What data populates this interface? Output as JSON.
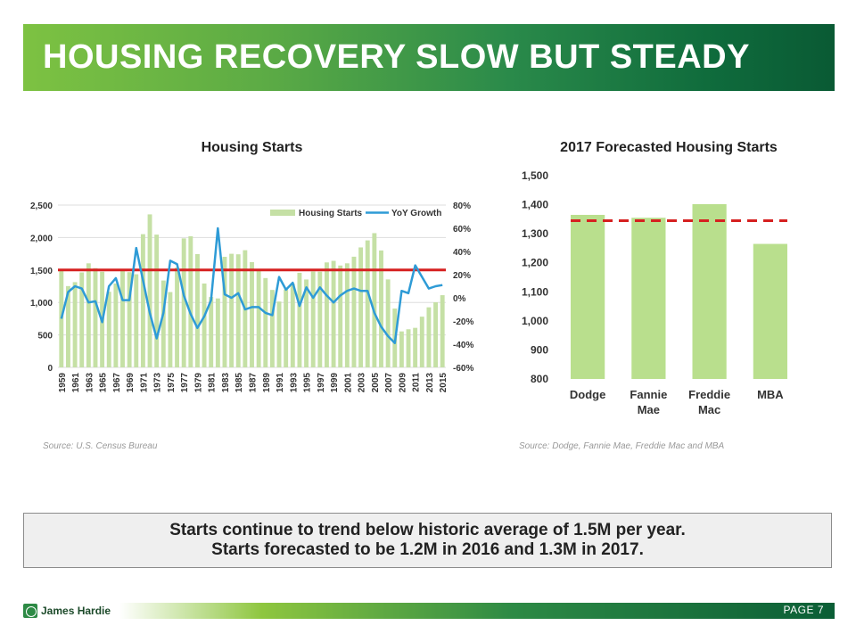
{
  "header": {
    "title": "HOUSING RECOVERY SLOW BUT STEADY"
  },
  "chart_data": [
    {
      "type": "bar",
      "title": "Housing Starts",
      "legend": [
        "Housing Starts",
        "YoY Growth"
      ],
      "legend_position": "top-right",
      "x": [
        1959,
        1960,
        1961,
        1962,
        1963,
        1964,
        1965,
        1966,
        1967,
        1968,
        1969,
        1970,
        1971,
        1972,
        1973,
        1974,
        1975,
        1976,
        1977,
        1978,
        1979,
        1980,
        1981,
        1982,
        1983,
        1984,
        1985,
        1986,
        1987,
        1988,
        1989,
        1990,
        1991,
        1992,
        1993,
        1994,
        1995,
        1996,
        1997,
        1998,
        1999,
        2000,
        2001,
        2002,
        2003,
        2004,
        2005,
        2006,
        2007,
        2008,
        2009,
        2010,
        2011,
        2012,
        2013,
        2014,
        2015
      ],
      "x_tick_labels": [
        "1959",
        "1961",
        "1963",
        "1965",
        "1967",
        "1969",
        "1971",
        "1973",
        "1975",
        "1977",
        "1979",
        "1981",
        "1983",
        "1985",
        "1987",
        "1989",
        "1991",
        "1993",
        "1995",
        "1997",
        "1999",
        "2001",
        "2003",
        "2005",
        "2007",
        "2009",
        "2011",
        "2013",
        "2015"
      ],
      "series": [
        {
          "name": "Housing Starts",
          "axis": "left",
          "values": [
            1517,
            1252,
            1313,
            1463,
            1603,
            1529,
            1473,
            1165,
            1292,
            1508,
            1467,
            1434,
            2052,
            2357,
            2045,
            1338,
            1160,
            1538,
            1987,
            2020,
            1745,
            1292,
            1084,
            1062,
            1703,
            1750,
            1742,
            1805,
            1621,
            1488,
            1376,
            1193,
            1014,
            1200,
            1288,
            1457,
            1354,
            1477,
            1474,
            1617,
            1641,
            1569,
            1603,
            1705,
            1848,
            1956,
            2068,
            1801,
            1355,
            906,
            554,
            587,
            609,
            781,
            925,
            1003,
            1112
          ]
        },
        {
          "name": "YoY Growth",
          "axis": "right",
          "values": [
            -0.18,
            0.05,
            0.1,
            0.08,
            -0.04,
            -0.03,
            -0.21,
            0.1,
            0.17,
            -0.02,
            -0.02,
            0.43,
            0.15,
            -0.13,
            -0.35,
            -0.13,
            0.32,
            0.29,
            0.02,
            -0.14,
            -0.26,
            -0.16,
            -0.02,
            0.6,
            0.03,
            0.0,
            0.04,
            -0.1,
            -0.08,
            -0.08,
            -0.13,
            -0.15,
            0.18,
            0.07,
            0.13,
            -0.07,
            0.09,
            0.0,
            0.09,
            0.02,
            -0.04,
            0.02,
            0.06,
            0.08,
            0.06,
            0.06,
            -0.13,
            -0.25,
            -0.33,
            -0.39,
            0.06,
            0.04,
            0.28,
            0.18,
            0.08,
            0.1,
            0.11
          ]
        }
      ],
      "average_line": 1500,
      "ylim_left": [
        0,
        2500
      ],
      "yticks_left": [
        "0",
        "500",
        "1,000",
        "1,500",
        "2,000",
        "2,500"
      ],
      "ylim_right": [
        -0.6,
        0.8
      ],
      "yticks_right": [
        "-60%",
        "-40%",
        "-20%",
        "0%",
        "20%",
        "40%",
        "60%",
        "80%"
      ],
      "colors": {
        "bars": "#c5e0a5",
        "line": "#2e9bd6",
        "average": "#d62020"
      },
      "source": "Source: U.S. Census Bureau"
    },
    {
      "type": "bar",
      "title": "2017 Forecasted Housing Starts",
      "categories": [
        "Dodge",
        "Fannie Mae",
        "Freddie Mac",
        "MBA"
      ],
      "category_lines": [
        [
          "Dodge"
        ],
        [
          "Fannie",
          "Mae"
        ],
        [
          "Freddie",
          "Mac"
        ],
        [
          "MBA"
        ]
      ],
      "values": [
        1365,
        1355,
        1402,
        1265
      ],
      "reference_line": 1345,
      "ylim": [
        800,
        1500
      ],
      "yticks": [
        "800",
        "900",
        "1,000",
        "1,100",
        "1,200",
        "1,300",
        "1,400",
        "1,500"
      ],
      "colors": {
        "bars": "#b9df8d",
        "reference": "#d62020"
      },
      "source": "Source: Dodge, Fannie Mae, Freddie Mac and MBA"
    }
  ],
  "message": {
    "line1": "Starts continue to trend below historic average of 1.5M per year.",
    "line2": "Starts forecasted to be 1.2M in 2016 and 1.3M in 2017."
  },
  "footer": {
    "logo_text": "James Hardie",
    "page_label": "PAGE  7"
  }
}
